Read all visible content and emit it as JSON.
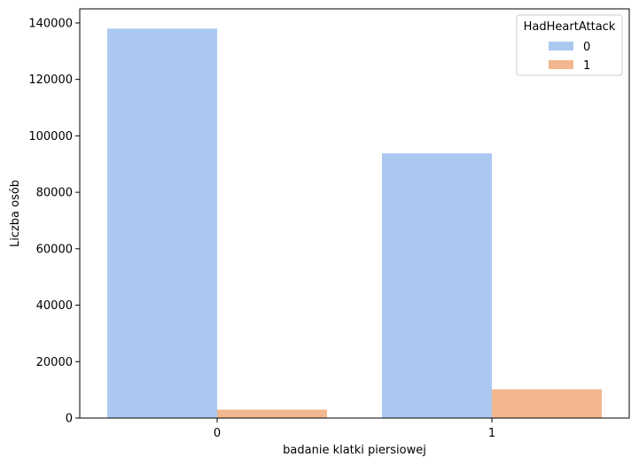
{
  "chart_data": {
    "type": "bar",
    "categories": [
      "0",
      "1"
    ],
    "series": [
      {
        "name": "0",
        "values": [
          138000,
          93800
        ],
        "color": "#abc9f0"
      },
      {
        "name": "1",
        "values": [
          3000,
          10200
        ],
        "color": "#f2b78f"
      }
    ],
    "xlabel": "badanie klatki piersiowej",
    "ylabel": "Liczba osób",
    "ylim": [
      0,
      145000
    ],
    "yticks": [
      0,
      20000,
      40000,
      60000,
      80000,
      100000,
      120000,
      140000
    ],
    "grid": false,
    "legend": {
      "title": "HadHeartAttack",
      "position": "top-right"
    }
  }
}
